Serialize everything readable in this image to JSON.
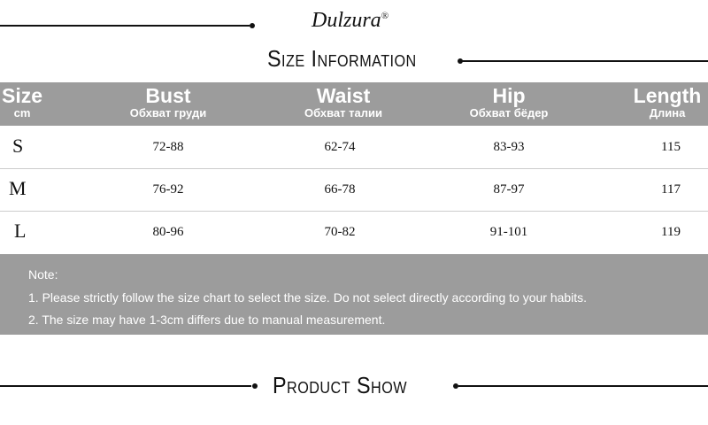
{
  "brand": {
    "logo": "Dulzura",
    "registered": "®"
  },
  "sections": {
    "size_title": "Size Information",
    "product_title": "Product Show"
  },
  "table": {
    "headers": [
      {
        "en": "Size",
        "ru": "cm"
      },
      {
        "en": "Bust",
        "ru": "Обхват груди"
      },
      {
        "en": "Waist",
        "ru": "Обхват талии"
      },
      {
        "en": "Hip",
        "ru": "Обхват бёдер"
      },
      {
        "en": "Length",
        "ru": "Длина"
      }
    ],
    "rows": [
      [
        "S",
        "72-88",
        "62-74",
        "83-93",
        "115"
      ],
      [
        "M",
        "76-92",
        "66-78",
        "87-97",
        "117"
      ],
      [
        "L",
        "80-96",
        "70-82",
        "91-101",
        "119"
      ]
    ]
  },
  "note": {
    "label": "Note:",
    "lines": [
      "1. Please strictly follow the size chart to select the size. Do not select directly according to your habits.",
      "2. The size may have 1-3cm differs due to manual measurement."
    ]
  },
  "colors": {
    "header_bg": "#9c9c9c",
    "text": "#111111"
  }
}
